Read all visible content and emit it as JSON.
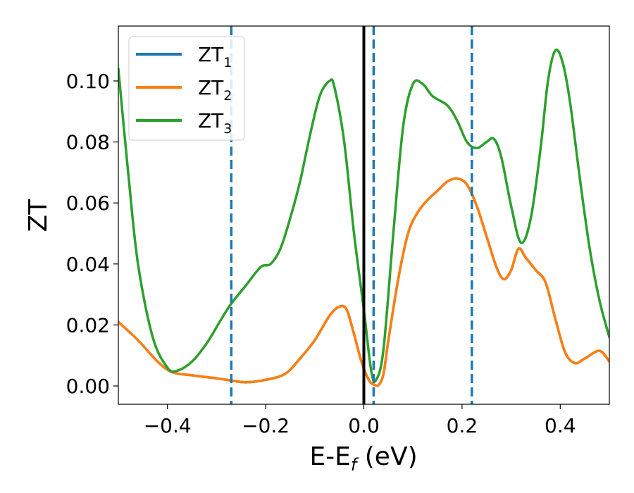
{
  "chart_data": {
    "type": "line",
    "title": "",
    "xlabel": "E-E",
    "xlabel_sub": "f",
    "xlabel_unit": " (eV)",
    "ylabel": "ZT",
    "xlim": [
      -0.5,
      0.5
    ],
    "ylim": [
      -0.006,
      0.118
    ],
    "xticks": [
      -0.4,
      -0.2,
      0.0,
      0.2,
      0.4
    ],
    "xtick_labels": [
      "−0.4",
      "−0.2",
      "0.0",
      "0.2",
      "0.4"
    ],
    "yticks": [
      0.0,
      0.02,
      0.04,
      0.06,
      0.08,
      0.1
    ],
    "ytick_labels": [
      "0.00",
      "0.02",
      "0.04",
      "0.06",
      "0.08",
      "0.10"
    ],
    "grid": false,
    "legend_position": "top-left",
    "vlines": [
      {
        "x": 0.0,
        "style": "solid",
        "color": "#000000"
      },
      {
        "x": -0.27,
        "style": "dashed",
        "color": "#1f77b4"
      },
      {
        "x": 0.02,
        "style": "dashed",
        "color": "#1f77b4"
      },
      {
        "x": 0.22,
        "style": "dashed",
        "color": "#1f77b4"
      }
    ],
    "series": [
      {
        "name": "ZT",
        "name_sub": "1",
        "color": "#1f77b4",
        "points": [
          [
            -0.5,
            0.021
          ],
          [
            -0.46,
            0.015
          ],
          [
            -0.42,
            0.008
          ],
          [
            -0.39,
            0.0045
          ],
          [
            -0.35,
            0.0035
          ],
          [
            -0.3,
            0.0025
          ],
          [
            -0.27,
            0.0018
          ],
          [
            -0.24,
            0.0012
          ],
          [
            -0.2,
            0.002
          ],
          [
            -0.16,
            0.004
          ],
          [
            -0.13,
            0.009
          ],
          [
            -0.1,
            0.015
          ],
          [
            -0.07,
            0.023
          ],
          [
            -0.05,
            0.026
          ],
          [
            -0.035,
            0.025
          ],
          [
            -0.02,
            0.017
          ],
          [
            -0.005,
            0.008
          ],
          [
            0.01,
            0.002
          ],
          [
            0.02,
            0.0005
          ],
          [
            0.03,
            0.0003
          ],
          [
            0.04,
            0.004
          ],
          [
            0.05,
            0.015
          ],
          [
            0.07,
            0.035
          ],
          [
            0.09,
            0.05
          ],
          [
            0.11,
            0.057
          ],
          [
            0.13,
            0.061
          ],
          [
            0.15,
            0.064
          ],
          [
            0.17,
            0.067
          ],
          [
            0.19,
            0.068
          ],
          [
            0.21,
            0.066
          ],
          [
            0.23,
            0.059
          ],
          [
            0.25,
            0.049
          ],
          [
            0.27,
            0.039
          ],
          [
            0.285,
            0.035
          ],
          [
            0.3,
            0.038
          ],
          [
            0.315,
            0.045
          ],
          [
            0.33,
            0.042
          ],
          [
            0.35,
            0.038
          ],
          [
            0.37,
            0.034
          ],
          [
            0.39,
            0.022
          ],
          [
            0.41,
            0.011
          ],
          [
            0.43,
            0.0075
          ],
          [
            0.45,
            0.009
          ],
          [
            0.48,
            0.0115
          ],
          [
            0.5,
            0.008
          ]
        ]
      },
      {
        "name": "ZT",
        "name_sub": "2",
        "color": "#ff7f0e",
        "points": [
          [
            -0.5,
            0.021
          ],
          [
            -0.46,
            0.015
          ],
          [
            -0.42,
            0.008
          ],
          [
            -0.39,
            0.0045
          ],
          [
            -0.35,
            0.0035
          ],
          [
            -0.3,
            0.0025
          ],
          [
            -0.27,
            0.0018
          ],
          [
            -0.24,
            0.0012
          ],
          [
            -0.2,
            0.002
          ],
          [
            -0.16,
            0.004
          ],
          [
            -0.13,
            0.009
          ],
          [
            -0.1,
            0.015
          ],
          [
            -0.07,
            0.023
          ],
          [
            -0.05,
            0.026
          ],
          [
            -0.035,
            0.025
          ],
          [
            -0.02,
            0.017
          ],
          [
            -0.005,
            0.008
          ],
          [
            0.01,
            0.002
          ],
          [
            0.02,
            0.0005
          ],
          [
            0.03,
            0.0003
          ],
          [
            0.04,
            0.004
          ],
          [
            0.05,
            0.015
          ],
          [
            0.07,
            0.035
          ],
          [
            0.09,
            0.05
          ],
          [
            0.11,
            0.057
          ],
          [
            0.13,
            0.061
          ],
          [
            0.15,
            0.064
          ],
          [
            0.17,
            0.067
          ],
          [
            0.19,
            0.068
          ],
          [
            0.21,
            0.066
          ],
          [
            0.23,
            0.059
          ],
          [
            0.25,
            0.049
          ],
          [
            0.27,
            0.039
          ],
          [
            0.285,
            0.035
          ],
          [
            0.3,
            0.038
          ],
          [
            0.315,
            0.045
          ],
          [
            0.33,
            0.042
          ],
          [
            0.35,
            0.038
          ],
          [
            0.37,
            0.034
          ],
          [
            0.39,
            0.022
          ],
          [
            0.41,
            0.011
          ],
          [
            0.43,
            0.0075
          ],
          [
            0.45,
            0.009
          ],
          [
            0.48,
            0.0115
          ],
          [
            0.5,
            0.008
          ]
        ]
      },
      {
        "name": "ZT",
        "name_sub": "3",
        "color": "#2ca02c",
        "points": [
          [
            -0.5,
            0.104
          ],
          [
            -0.48,
            0.07
          ],
          [
            -0.46,
            0.04
          ],
          [
            -0.43,
            0.016
          ],
          [
            -0.4,
            0.006
          ],
          [
            -0.38,
            0.005
          ],
          [
            -0.35,
            0.008
          ],
          [
            -0.32,
            0.014
          ],
          [
            -0.29,
            0.022
          ],
          [
            -0.27,
            0.027
          ],
          [
            -0.24,
            0.033
          ],
          [
            -0.21,
            0.039
          ],
          [
            -0.19,
            0.04
          ],
          [
            -0.17,
            0.045
          ],
          [
            -0.15,
            0.055
          ],
          [
            -0.13,
            0.067
          ],
          [
            -0.11,
            0.082
          ],
          [
            -0.09,
            0.095
          ],
          [
            -0.07,
            0.1
          ],
          [
            -0.06,
            0.098
          ],
          [
            -0.04,
            0.08
          ],
          [
            -0.02,
            0.05
          ],
          [
            0.0,
            0.025
          ],
          [
            0.015,
            0.005
          ],
          [
            0.025,
            0.002
          ],
          [
            0.04,
            0.012
          ],
          [
            0.06,
            0.05
          ],
          [
            0.08,
            0.085
          ],
          [
            0.1,
            0.099
          ],
          [
            0.12,
            0.099
          ],
          [
            0.14,
            0.095
          ],
          [
            0.17,
            0.092
          ],
          [
            0.19,
            0.087
          ],
          [
            0.21,
            0.08
          ],
          [
            0.23,
            0.078
          ],
          [
            0.25,
            0.08
          ],
          [
            0.265,
            0.081
          ],
          [
            0.28,
            0.075
          ],
          [
            0.3,
            0.059
          ],
          [
            0.32,
            0.047
          ],
          [
            0.34,
            0.055
          ],
          [
            0.36,
            0.078
          ],
          [
            0.375,
            0.1
          ],
          [
            0.39,
            0.11
          ],
          [
            0.405,
            0.106
          ],
          [
            0.42,
            0.093
          ],
          [
            0.44,
            0.068
          ],
          [
            0.46,
            0.045
          ],
          [
            0.48,
            0.028
          ],
          [
            0.5,
            0.016
          ]
        ]
      }
    ]
  }
}
